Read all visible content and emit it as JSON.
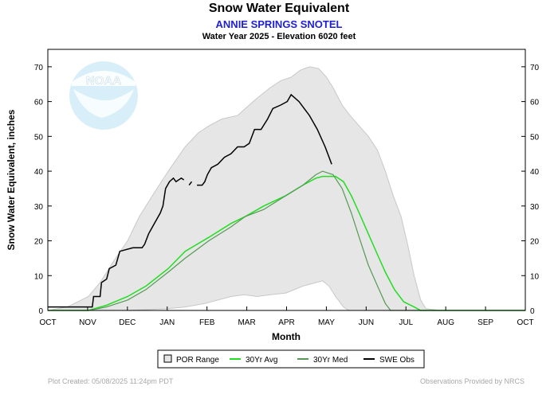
{
  "header": {
    "title": "Snow Water Equivalent",
    "station": "ANNIE SPRINGS SNOTEL",
    "subtitle": "Water Year 2025 -  Elevation 6020 feet"
  },
  "footer": {
    "created": "Plot Created: 05/08/2025 11:24pm PDT",
    "provider": "Observations Provided by NRCS"
  },
  "logo_text": "NOAA",
  "colors": {
    "por_fill": "#e6e6e6",
    "por_edge": "#c8c8c8",
    "avg": "#22dd22",
    "med": "#559955",
    "obs": "#000000"
  },
  "chart_data": {
    "type": "area",
    "title": "Snow Water Equivalent",
    "xlabel": "Month",
    "ylabel": "Snow Water Equivalent, inches",
    "x_categories": [
      "OCT",
      "NOV",
      "DEC",
      "JAN",
      "FEB",
      "MAR",
      "APR",
      "MAY",
      "JUN",
      "JUL",
      "AUG",
      "SEP",
      "OCT"
    ],
    "y_ticks": [
      0,
      10,
      20,
      30,
      40,
      50,
      60,
      70
    ],
    "ylim": [
      0,
      75
    ],
    "x_unit": "days since Oct 1",
    "xlim": [
      0,
      365
    ],
    "grid": false,
    "legend_position": "bottom",
    "legend": [
      "POR Range",
      "30Yr Avg",
      "30Yr Med",
      "SWE Obs"
    ],
    "series": [
      {
        "name": "POR Range",
        "kind": "band",
        "upper": [
          [
            0,
            0
          ],
          [
            15,
            1
          ],
          [
            31,
            4
          ],
          [
            40,
            8
          ],
          [
            50,
            14
          ],
          [
            61,
            20
          ],
          [
            70,
            27
          ],
          [
            80,
            33
          ],
          [
            92,
            40
          ],
          [
            105,
            47
          ],
          [
            115,
            51
          ],
          [
            123,
            53
          ],
          [
            133,
            55
          ],
          [
            145,
            56
          ],
          [
            151,
            58
          ],
          [
            160,
            61
          ],
          [
            170,
            64
          ],
          [
            178,
            66
          ],
          [
            186,
            67
          ],
          [
            193,
            69
          ],
          [
            200,
            70
          ],
          [
            207,
            69.5
          ],
          [
            213,
            67
          ],
          [
            218,
            64
          ],
          [
            225,
            59
          ],
          [
            231,
            56
          ],
          [
            238,
            53
          ],
          [
            245,
            50
          ],
          [
            252,
            46
          ],
          [
            258,
            40
          ],
          [
            264,
            33
          ],
          [
            270,
            27
          ],
          [
            275,
            19
          ],
          [
            280,
            10
          ],
          [
            285,
            3
          ],
          [
            289,
            0.5
          ],
          [
            300,
            0
          ],
          [
            365,
            0
          ]
        ],
        "lower": [
          [
            0,
            0
          ],
          [
            61,
            0
          ],
          [
            92,
            0.5
          ],
          [
            105,
            1
          ],
          [
            120,
            2
          ],
          [
            130,
            3
          ],
          [
            140,
            4
          ],
          [
            150,
            4.5
          ],
          [
            160,
            4
          ],
          [
            170,
            4.5
          ],
          [
            182,
            5
          ],
          [
            195,
            7
          ],
          [
            205,
            8
          ],
          [
            210,
            8.5
          ],
          [
            215,
            7
          ],
          [
            220,
            4
          ],
          [
            226,
            1
          ],
          [
            230,
            0
          ],
          [
            365,
            0
          ]
        ]
      },
      {
        "name": "30Yr Avg",
        "kind": "line",
        "points": [
          [
            0,
            0
          ],
          [
            31,
            0
          ],
          [
            45,
            1.5
          ],
          [
            61,
            4
          ],
          [
            75,
            7
          ],
          [
            92,
            12
          ],
          [
            105,
            17
          ],
          [
            123,
            21
          ],
          [
            140,
            25
          ],
          [
            151,
            27
          ],
          [
            165,
            30
          ],
          [
            182,
            33
          ],
          [
            195,
            36
          ],
          [
            205,
            38
          ],
          [
            210,
            38.5
          ],
          [
            220,
            38.5
          ],
          [
            226,
            37
          ],
          [
            232,
            33
          ],
          [
            238,
            28
          ],
          [
            245,
            22
          ],
          [
            252,
            16
          ],
          [
            258,
            11
          ],
          [
            265,
            6
          ],
          [
            272,
            2.5
          ],
          [
            280,
            1
          ],
          [
            285,
            0
          ],
          [
            365,
            0
          ]
        ]
      },
      {
        "name": "30Yr Med",
        "kind": "line",
        "points": [
          [
            0,
            0
          ],
          [
            31,
            0
          ],
          [
            45,
            1
          ],
          [
            61,
            3
          ],
          [
            75,
            6
          ],
          [
            92,
            11
          ],
          [
            105,
            15
          ],
          [
            123,
            20
          ],
          [
            140,
            24
          ],
          [
            151,
            27
          ],
          [
            165,
            29
          ],
          [
            182,
            33
          ],
          [
            195,
            36
          ],
          [
            205,
            39
          ],
          [
            210,
            40
          ],
          [
            218,
            39
          ],
          [
            225,
            35
          ],
          [
            232,
            28
          ],
          [
            238,
            21
          ],
          [
            245,
            13
          ],
          [
            252,
            7
          ],
          [
            258,
            2
          ],
          [
            262,
            0
          ],
          [
            365,
            0
          ]
        ]
      },
      {
        "name": "SWE Obs",
        "kind": "line",
        "segments": [
          [
            [
              0,
              1
            ],
            [
              30,
              1
            ],
            [
              34,
              1
            ],
            [
              35,
              4
            ],
            [
              40,
              4
            ],
            [
              41,
              8
            ],
            [
              45,
              9
            ],
            [
              47,
              12
            ],
            [
              52,
              13
            ],
            [
              55,
              17
            ],
            [
              65,
              18
            ],
            [
              72,
              18
            ],
            [
              74,
              19
            ],
            [
              77,
              22
            ],
            [
              80,
              24
            ],
            [
              83,
              26
            ],
            [
              86,
              28
            ],
            [
              88,
              30
            ],
            [
              90,
              35
            ],
            [
              93,
              37
            ],
            [
              96,
              38
            ],
            [
              98,
              37
            ],
            [
              102,
              38
            ],
            [
              104,
              37.5
            ]
          ],
          [
            [
              108,
              36
            ],
            [
              110,
              37
            ]
          ],
          [
            [
              114,
              36
            ],
            [
              118,
              36
            ],
            [
              120,
              37
            ],
            [
              122,
              39
            ],
            [
              125,
              41
            ],
            [
              130,
              42
            ],
            [
              135,
              44
            ],
            [
              140,
              45
            ],
            [
              145,
              47
            ],
            [
              150,
              47
            ],
            [
              154,
              48
            ],
            [
              158,
              52
            ],
            [
              163,
              52
            ],
            [
              168,
              55
            ],
            [
              172,
              58
            ],
            [
              178,
              59
            ],
            [
              183,
              60
            ],
            [
              186,
              62
            ],
            [
              192,
              60
            ],
            [
              200,
              56
            ],
            [
              206,
              52
            ],
            [
              212,
              47
            ],
            [
              217,
              42
            ]
          ]
        ]
      }
    ]
  }
}
